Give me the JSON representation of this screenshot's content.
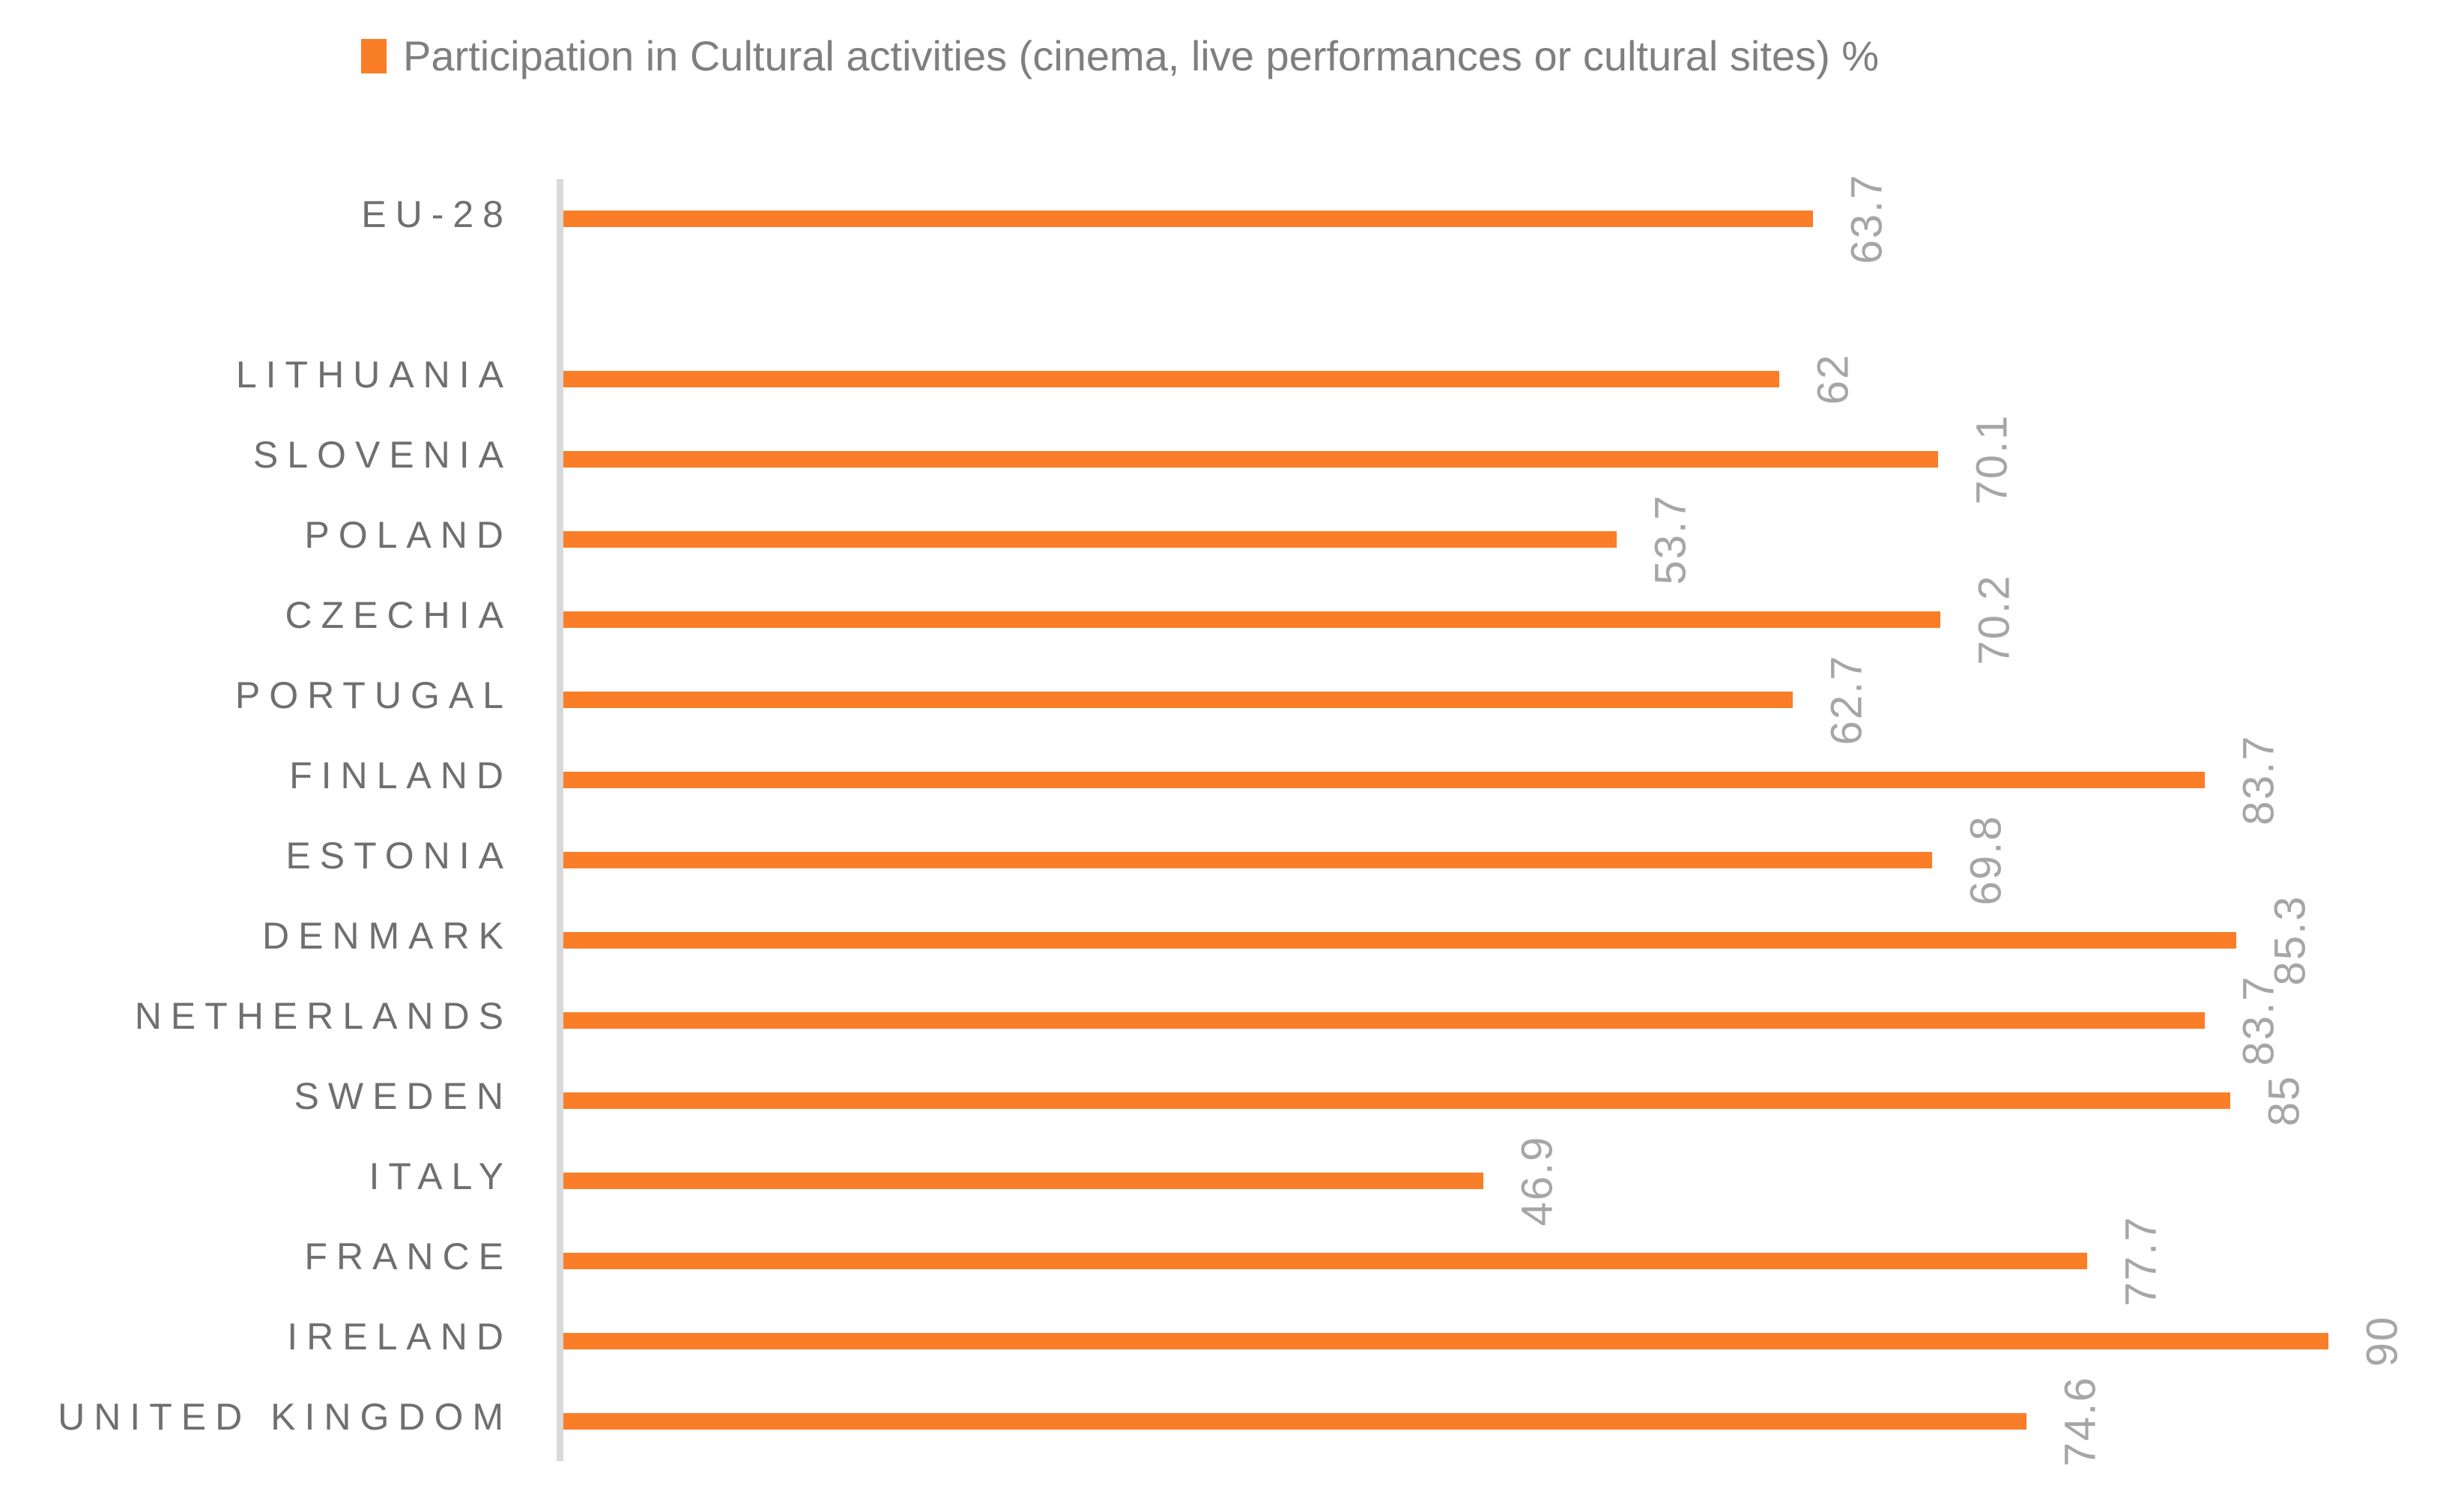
{
  "legend": {
    "label": "Participation in Cultural activities (cinema, live performances or cultural sites) %",
    "marker_color": "#fa7d28"
  },
  "colors": {
    "bar": "#fa7d28",
    "axis_line": "#d9d9d9",
    "category_label_text": "#6f6f6f",
    "value_label_text": "#a6a6a6",
    "legend_text": "#7f7f7f",
    "background": "#ffffff"
  },
  "chart_data": {
    "type": "bar",
    "orientation": "horizontal",
    "title": "Participation in Cultural activities (cinema, live performances or cultural sites) %",
    "legend_position": "top",
    "gridlines": false,
    "value_axis_visible": false,
    "xlim": [
      0,
      95
    ],
    "value_label_rotation_deg": -90,
    "series": [
      {
        "name": "Participation in Cultural activities (cinema, live performances or cultural sites) %",
        "color": "#fa7d28"
      }
    ],
    "categories": [
      "EU-28",
      "",
      "LITHUANIA",
      "SLOVENIA",
      "POLAND",
      "CZECHIA",
      "PORTUGAL",
      "FINLAND",
      "ESTONIA",
      "DENMARK",
      "NETHERLANDS",
      "SWEDEN",
      "ITALY",
      "FRANCE",
      "IRELAND",
      "UNITED KINGDOM"
    ],
    "values": [
      63.7,
      null,
      62,
      70.1,
      53.7,
      70.2,
      62.7,
      83.7,
      69.8,
      85.3,
      83.7,
      85,
      46.9,
      77.7,
      90,
      74.6
    ],
    "value_labels": [
      "63.7",
      "",
      "62",
      "70.1",
      "53.7",
      "70.2",
      "62.7",
      "83.7",
      "69.8",
      "85.3",
      "83.7",
      "85",
      "46.9",
      "77.7",
      "90",
      "74.6"
    ]
  }
}
